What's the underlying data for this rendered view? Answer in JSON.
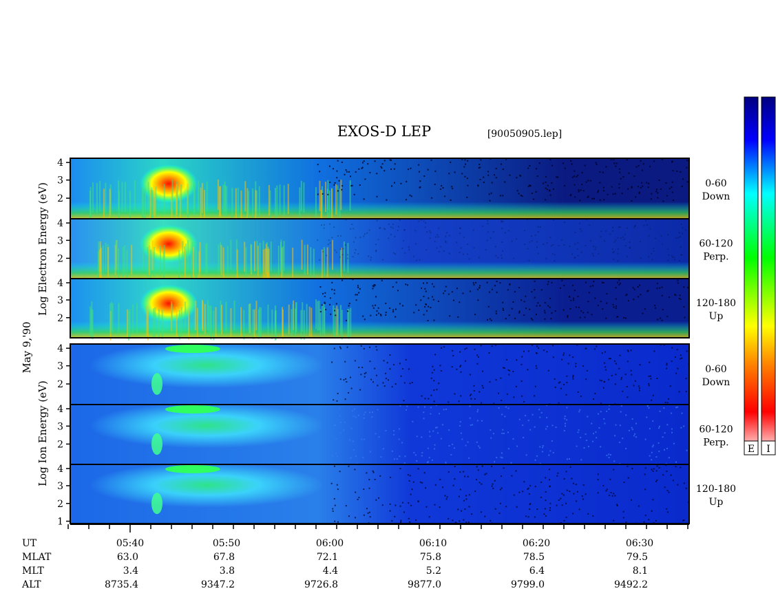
{
  "title": "EXOS-D LEP",
  "file_label": "[90050905.lep]",
  "date_label": "May  9,'90",
  "colors": {
    "spectrum": [
      "#ffffff",
      "#ff0000",
      "#ff8000",
      "#ffff00",
      "#00ff00",
      "#00ffff",
      "#0000ff",
      "#000080"
    ],
    "background": "#ffffff",
    "axis": "#000000"
  },
  "chart_data": {
    "type": "heatmap",
    "x_axis": {
      "tick_labels": [
        "05:40",
        "05:50",
        "06:00",
        "06:10",
        "06:20",
        "06:30"
      ],
      "minor_ticks_per_major": 5
    },
    "groups": [
      {
        "id": "electron",
        "ylabel": "Log  Electron  Energy  (eV)",
        "panels": [
          {
            "id": "e-down",
            "pitch": "0-60",
            "direction": "Down",
            "ticks": [
              "4",
              "3",
              "2"
            ]
          },
          {
            "id": "e-perp",
            "pitch": "60-120",
            "direction": "Perp.",
            "ticks": [
              "4",
              "3",
              "2"
            ]
          },
          {
            "id": "e-up",
            "pitch": "120-180",
            "direction": "Up",
            "ticks": [
              "4",
              "3",
              "2"
            ]
          }
        ]
      },
      {
        "id": "ion",
        "ylabel": "Log  Ion  Energy  (eV)",
        "panels": [
          {
            "id": "i-down",
            "pitch": "0-60",
            "direction": "Down",
            "ticks": [
              "4",
              "3",
              "2"
            ]
          },
          {
            "id": "i-perp",
            "pitch": "60-120",
            "direction": "Perp.",
            "ticks": [
              "4",
              "3",
              "2"
            ]
          },
          {
            "id": "i-up",
            "pitch": "120-180",
            "direction": "Up",
            "ticks": [
              "4",
              "3",
              "2",
              "1"
            ]
          }
        ]
      }
    ],
    "colorbars": [
      {
        "id": "electron-bar",
        "label": "E"
      },
      {
        "id": "ion-bar",
        "label": "I"
      }
    ],
    "ephemeris": [
      {
        "name": "UT",
        "values": [
          "05:40",
          "05:50",
          "06:00",
          "06:10",
          "06:20",
          "06:30"
        ]
      },
      {
        "name": "MLAT",
        "values": [
          "63.0",
          "67.8",
          "72.1",
          "75.8",
          "78.5",
          "79.5"
        ]
      },
      {
        "name": "MLT",
        "values": [
          "3.4",
          "3.8",
          "4.4",
          "5.2",
          "6.4",
          "8.1"
        ]
      },
      {
        "name": "ALT",
        "values": [
          "8735.4",
          "9347.2",
          "9726.8",
          "9877.0",
          "9799.0",
          "9492.2"
        ]
      }
    ]
  }
}
